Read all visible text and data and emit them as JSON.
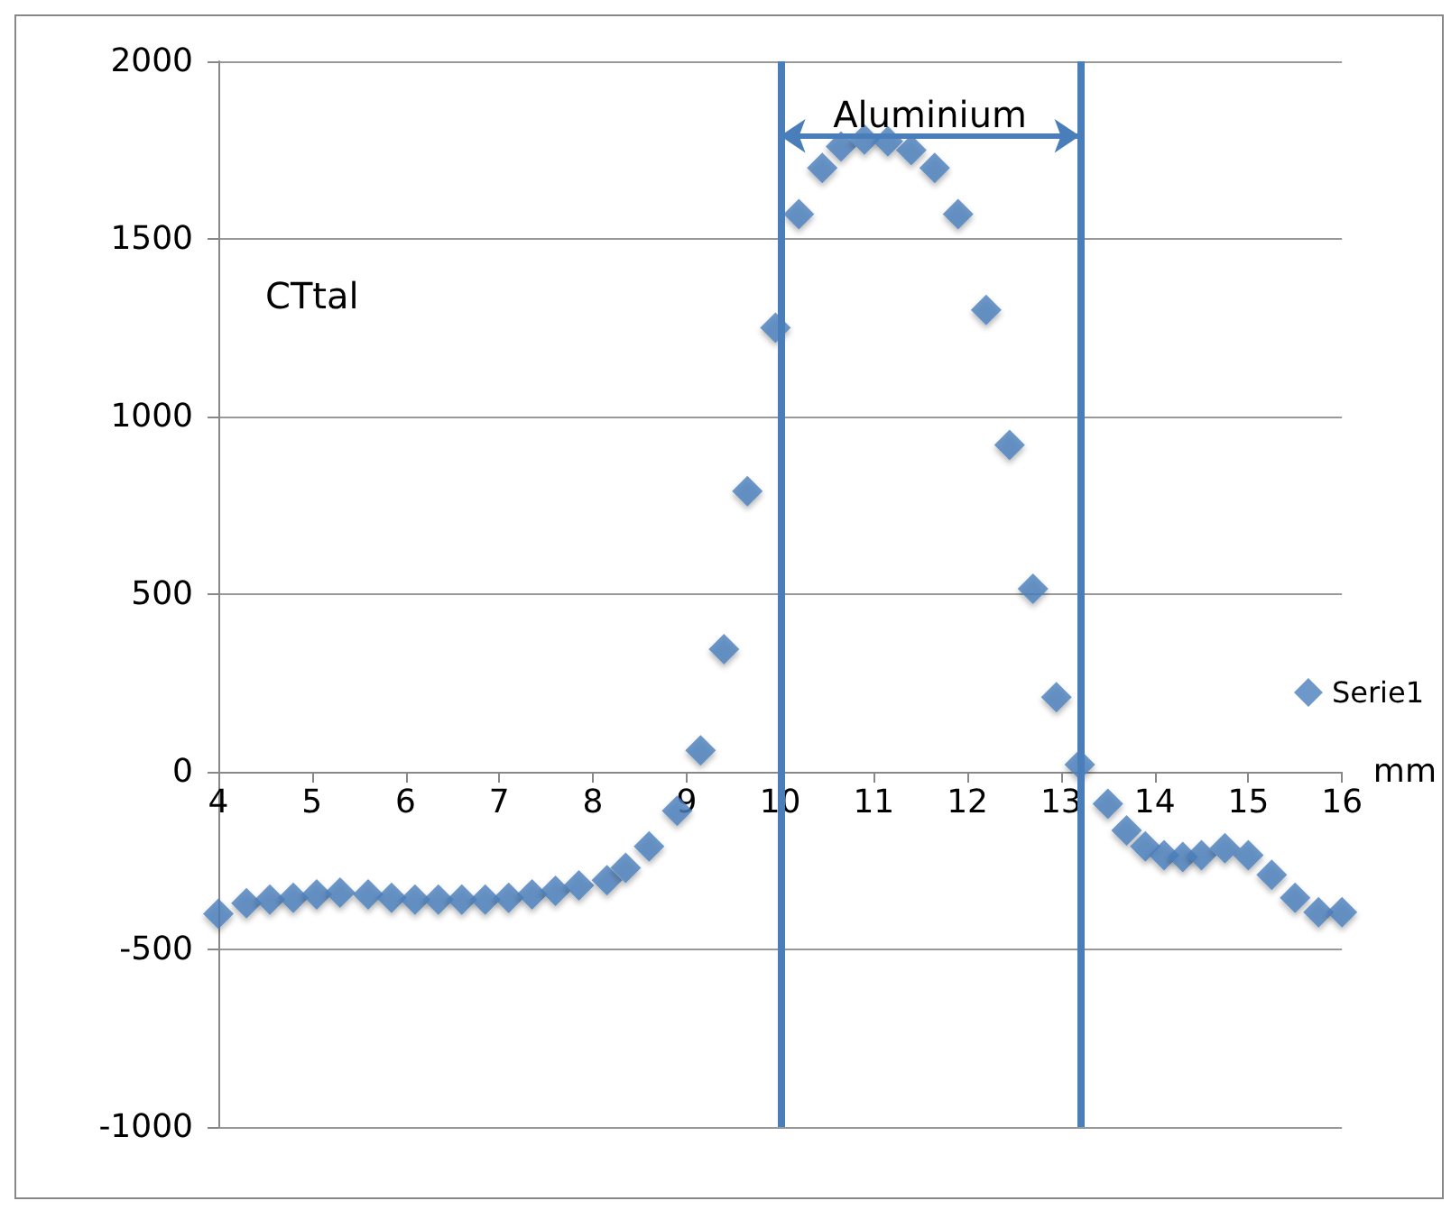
{
  "chart_data": {
    "type": "scatter",
    "ylabel": "CTtal",
    "xlabel": "mm",
    "marker": "diamond",
    "legend": "right",
    "grid": "y",
    "xlim": [
      4,
      16
    ],
    "xticks": [
      4,
      5,
      6,
      7,
      8,
      9,
      10,
      11,
      12,
      13,
      14,
      15,
      16
    ],
    "ylim": [
      -1000,
      2000
    ],
    "yticks": [
      -1000,
      -500,
      0,
      500,
      1000,
      1500,
      2000
    ],
    "series": [
      {
        "name": "Serie1",
        "color": "#4a7ebb",
        "x": [
          4.0,
          4.3,
          4.55,
          4.8,
          5.05,
          5.3,
          5.6,
          5.85,
          6.1,
          6.35,
          6.6,
          6.85,
          7.1,
          7.35,
          7.6,
          7.85,
          8.15,
          8.35,
          8.6,
          8.9,
          9.15,
          9.4,
          9.65,
          9.95,
          10.2,
          10.45,
          10.65,
          10.9,
          11.15,
          11.4,
          11.65,
          11.9,
          12.2,
          12.45,
          12.7,
          12.95,
          13.2,
          13.5,
          13.7,
          13.9,
          14.1,
          14.3,
          14.5,
          14.75,
          15.0,
          15.25,
          15.5,
          15.75,
          16.0
        ],
        "values": [
          -400,
          -370,
          -360,
          -355,
          -345,
          -340,
          -345,
          -355,
          -360,
          -360,
          -360,
          -360,
          -355,
          -345,
          -335,
          -320,
          -305,
          -270,
          -210,
          -110,
          60,
          345,
          790,
          1250,
          1570,
          1700,
          1760,
          1780,
          1775,
          1750,
          1700,
          1570,
          1300,
          920,
          515,
          210,
          20,
          -90,
          -165,
          -210,
          -235,
          -240,
          -235,
          -215,
          -235,
          -290,
          -355,
          -395,
          -395
        ]
      }
    ],
    "ref_lines": [
      {
        "axis": "x",
        "value": 10,
        "color": "#4a7ebb"
      },
      {
        "axis": "x",
        "value": 13.2,
        "color": "#4a7ebb"
      }
    ],
    "annotations": [
      "Aluminium"
    ]
  }
}
